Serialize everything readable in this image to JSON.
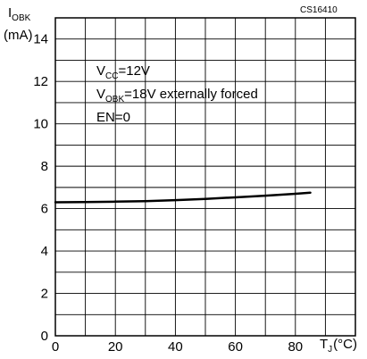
{
  "figure_code": "CS16410",
  "chart_data": {
    "type": "line",
    "xlabel": {
      "main": "T",
      "sub": "J",
      "unit": "(°C)"
    },
    "ylabel": {
      "main": "I",
      "sub": "OBK",
      "unit": "(mA)"
    },
    "xlim": [
      0,
      100
    ],
    "ylim": [
      0,
      15
    ],
    "x_ticks": [
      0,
      20,
      40,
      60,
      80
    ],
    "y_ticks": [
      0,
      2,
      4,
      6,
      8,
      10,
      12,
      14
    ],
    "grid": true,
    "annotations": [
      {
        "main": "V",
        "sub": "CC",
        "rest": "=12V"
      },
      {
        "main": "V",
        "sub": "OBK",
        "rest": "=18V  externally  forced"
      },
      {
        "main": "EN=0",
        "sub": "",
        "rest": ""
      }
    ],
    "series": [
      {
        "x": [
          0,
          10,
          20,
          30,
          40,
          50,
          60,
          70,
          80,
          85
        ],
        "y": [
          6.3,
          6.31,
          6.33,
          6.35,
          6.4,
          6.46,
          6.53,
          6.61,
          6.7,
          6.75
        ]
      }
    ]
  }
}
